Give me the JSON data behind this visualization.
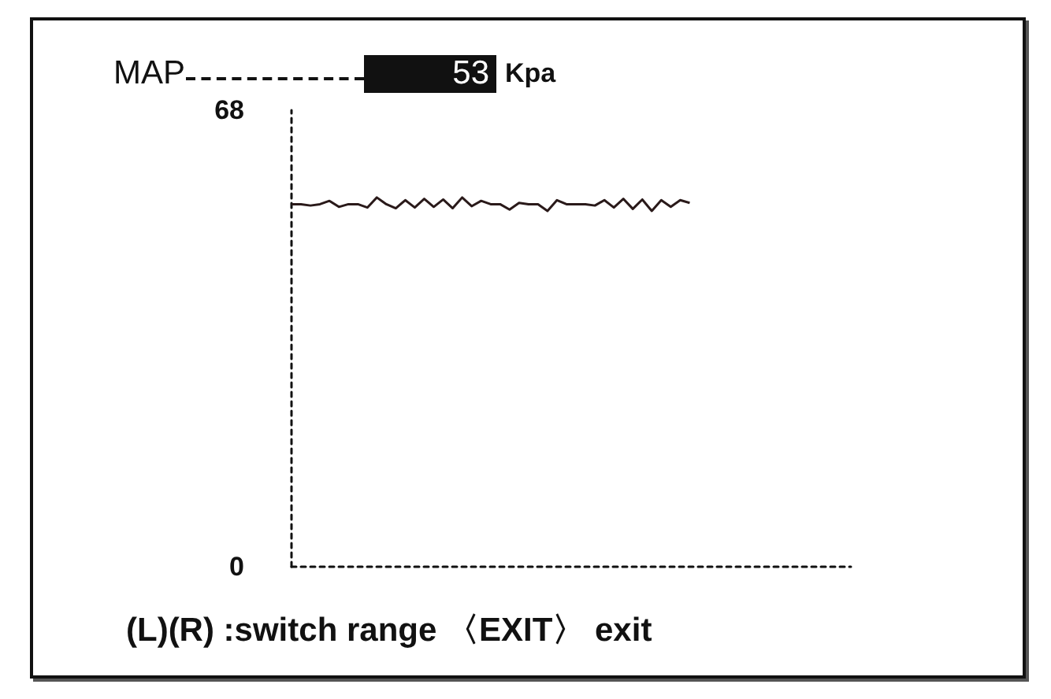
{
  "chart_data": {
    "type": "line",
    "title": "MAP",
    "annotations": [
      "53",
      "Kpa",
      "(L)(R) :switch range 〈EXIT〉 exit"
    ],
    "categories": [
      null,
      null,
      null,
      null,
      null,
      null,
      null,
      null,
      null,
      null,
      null,
      null,
      null,
      null,
      null,
      null,
      null,
      null,
      null,
      null,
      null,
      null,
      null,
      null,
      null,
      null,
      null,
      null,
      null,
      null,
      null,
      null,
      null,
      null,
      null,
      null,
      null,
      null,
      null,
      null,
      null,
      null,
      null,
      null,
      null,
      null,
      null,
      null,
      null,
      null,
      null,
      null,
      null,
      null,
      null,
      null,
      null,
      null,
      null,
      null
    ],
    "series": [
      {
        "color": "#2a1a1a",
        "values": [
          54,
          54,
          53.8,
          54,
          54.5,
          53.6,
          54,
          54,
          53.5,
          55,
          54,
          53.4,
          54.6,
          53.5,
          54.8,
          53.6,
          54.7,
          53.4,
          55,
          53.7,
          54.5,
          54,
          54,
          53.2,
          54.2,
          54,
          54,
          53,
          54.6,
          54,
          54,
          54,
          53.8,
          54.6,
          53.5,
          54.8,
          53.3,
          54.7,
          53,
          54.6,
          53.6,
          54.6,
          54.2,
          null,
          null,
          null,
          null,
          null,
          null,
          null,
          null,
          null,
          null,
          null,
          null,
          null,
          null,
          null,
          null,
          null
        ]
      }
    ],
    "ylim": [
      0,
      68
    ],
    "yticks": [
      0,
      68
    ],
    "grid": false,
    "line_style": "solid",
    "tick_labels": "y"
  }
}
